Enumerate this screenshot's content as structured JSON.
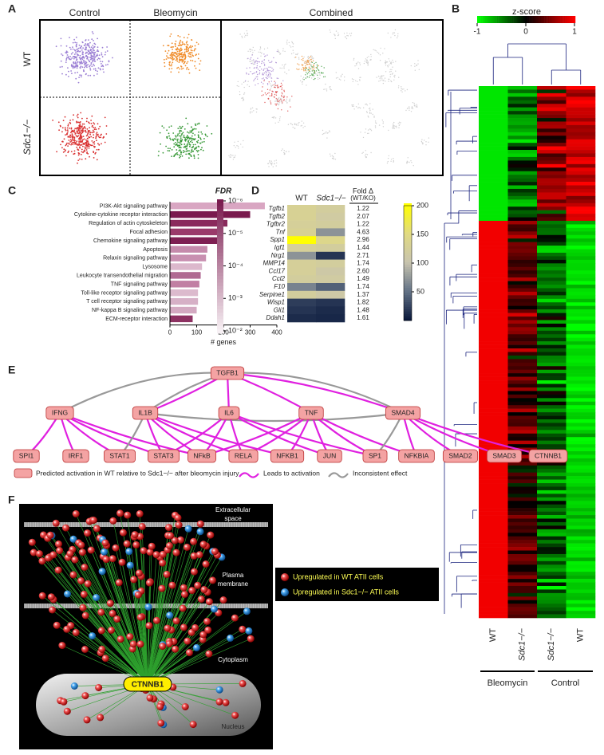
{
  "panel_labels": [
    "A",
    "B",
    "C",
    "D",
    "E",
    "F"
  ],
  "panel_a": {
    "columns": [
      "Control",
      "Bleomycin",
      "Combined"
    ],
    "rows": [
      "WT",
      "Sdc1−/−"
    ]
  },
  "panel_b": {
    "colorbar_title": "z-score",
    "colorbar_ticks": [
      -1,
      0,
      1
    ],
    "colorbar_lim": [
      -1,
      1
    ],
    "columns": [
      "WT",
      "Sdc1−/−",
      "Sdc1−/−",
      "WT"
    ],
    "groups": [
      "Bleomycin",
      "Control"
    ]
  },
  "chart_data": {
    "type": "bar",
    "orientation": "horizontal",
    "categories": [
      "PI3K-Akt signaling pathway",
      "Cytokine-cytokine receptor interaction",
      "Regulation of actin cytoskeleton",
      "Focal adhesion",
      "Chemokine signaling pathway",
      "Apoptosis",
      "Relaxin signaling pathway",
      "Lysosome",
      "Leukocyte transendothelial migration",
      "TNF signaling pathway",
      "Toll-like receptor signaling pathway",
      "T cell receptor signaling pathway",
      "NF-kappa B signaling pathway",
      "ECM-receptor interaction"
    ],
    "values": [
      355,
      300,
      215,
      200,
      190,
      140,
      135,
      120,
      115,
      110,
      105,
      105,
      100,
      85
    ],
    "colors": [
      "#d9a6c2",
      "#7a1a4e",
      "#8a2a5c",
      "#9a3a6a",
      "#7e1f52",
      "#c58aab",
      "#c88fb0",
      "#dcb8cc",
      "#b06a92",
      "#c17fa3",
      "#dcbacd",
      "#d6b0c6",
      "#d3a9c1",
      "#8d3262"
    ],
    "xlabel": "# genes",
    "xlim": [
      0,
      400
    ],
    "xticks": [
      0,
      100,
      200,
      300,
      400
    ],
    "colorbar_title": "FDR",
    "colorbar_lim": [
      1e-06,
      0.01
    ],
    "colorbar_colors": [
      "#7a1a4e",
      "#f7f0f4"
    ],
    "colorbar_ticks": [
      {
        "value": 1e-06,
        "label": "10⁻⁶"
      },
      {
        "value": 1e-05,
        "label": "10⁻⁵"
      },
      {
        "value": 0.0001,
        "label": "10⁻⁴"
      },
      {
        "value": 0.001,
        "label": "10⁻³"
      },
      {
        "value": 0.01,
        "label": "10⁻²"
      }
    ]
  },
  "panel_d": {
    "columns": [
      "WT",
      "Sdc1−/−"
    ],
    "fold_header": "Fold Δ",
    "fold_subheader": "(WT/KO)",
    "genes": [
      "Tgfb1",
      "Tgfb2",
      "Tgfbr2",
      "Tnf",
      "Spp1",
      "Igf1",
      "Nrg1",
      "MMP14",
      "Ccl17",
      "Ccl2",
      "F10",
      "Serpine1",
      "Wisp1",
      "Gli1",
      "Ddah1"
    ],
    "fold_change": [
      "1.22",
      "2.07",
      "1.22",
      "4.63",
      "2.96",
      "1.44",
      "2.71",
      "1.74",
      "2.60",
      "1.49",
      "1.74",
      "1.37",
      "1.82",
      "1.48",
      "1.61"
    ],
    "values": [
      [
        130,
        120
      ],
      [
        130,
        115
      ],
      [
        125,
        120
      ],
      [
        130,
        70
      ],
      [
        200,
        140
      ],
      [
        125,
        120
      ],
      [
        70,
        15
      ],
      [
        125,
        120
      ],
      [
        125,
        110
      ],
      [
        120,
        115
      ],
      [
        60,
        40
      ],
      [
        120,
        110
      ],
      [
        20,
        15
      ],
      [
        15,
        10
      ],
      [
        10,
        8
      ]
    ],
    "colorbar_lim": [
      0,
      200
    ],
    "colorbar_ticks": [
      50,
      100,
      150,
      200
    ]
  },
  "panel_e": {
    "top": [
      "TGFB1"
    ],
    "middle": [
      "IFNG",
      "IL1B",
      "IL6",
      "TNF",
      "SMAD4"
    ],
    "bottom": [
      "SPI1",
      "IRF1",
      "STAT1",
      "STAT3",
      "NFkB",
      "RELA",
      "NFKB1",
      "JUN",
      "SP1",
      "NFKBIA",
      "SMAD2",
      "SMAD3",
      "CTNNB1"
    ],
    "legend": [
      "Predicted activation in WT relative to Sdc1−/− after bleomycin injury",
      "Leads to activation",
      "Inconsistent effect"
    ]
  },
  "panel_f": {
    "compartments": [
      "Extracellular",
      "space",
      "Plasma",
      "membrane",
      "Cytoplasm",
      "Nucleus"
    ],
    "hub": "CTNNB1",
    "legend": [
      "Upregulated in WT ATII cells",
      "Upregulated in Sdc1−/− ATII cells"
    ]
  }
}
